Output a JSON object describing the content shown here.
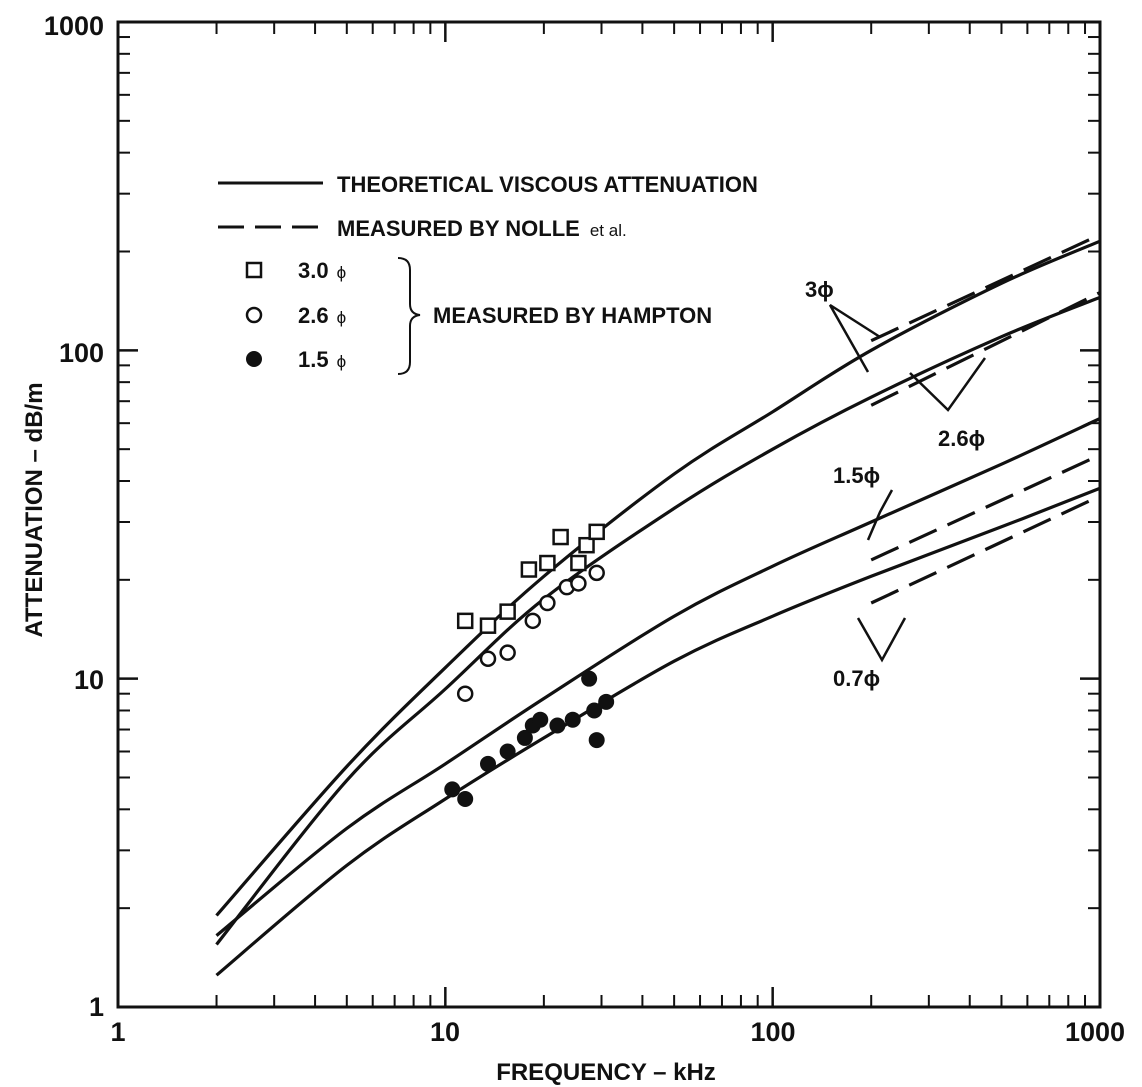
{
  "chart_data": {
    "type": "line",
    "xscale": "log",
    "yscale": "log",
    "xlim": [
      1,
      1000
    ],
    "ylim": [
      1,
      1000
    ],
    "xlabel": "FREQUENCY – kHz",
    "ylabel": "ATTENUATION – dB/m",
    "x_ticks": [
      "1",
      "10",
      "100",
      "1000"
    ],
    "y_ticks": [
      "1",
      "10",
      "100",
      "1000"
    ],
    "grid": false,
    "legend_position": "upper-left",
    "legend": {
      "solid": "THEORETICAL VISCOUS ATTENUATION",
      "dashed_main": "MEASURED BY NOLLE",
      "dashed_suffix": "et al.",
      "hampton_group": "MEASURED BY HAMPTON",
      "markers": [
        {
          "symbol": "open-square",
          "number": "3.0",
          "unit": "ϕ"
        },
        {
          "symbol": "open-circle",
          "number": "2.6",
          "unit": "ϕ"
        },
        {
          "symbol": "filled-circle",
          "number": "1.5",
          "unit": "ϕ"
        }
      ]
    },
    "series": [
      {
        "name": "3ϕ",
        "style": "solid",
        "x": [
          2,
          5,
          10,
          20,
          50,
          100,
          200,
          500,
          1000
        ],
        "y": [
          1.9,
          5.4,
          10.8,
          20.5,
          42,
          65,
          100,
          160,
          215
        ]
      },
      {
        "name": "2.6ϕ",
        "style": "solid",
        "x": [
          2,
          5,
          10,
          20,
          50,
          100,
          200,
          500,
          1000
        ],
        "y": [
          1.55,
          4.9,
          9.3,
          17.5,
          33,
          50,
          72,
          110,
          145
        ]
      },
      {
        "name": "1.5ϕ",
        "style": "solid",
        "x": [
          2,
          5,
          10,
          20,
          50,
          100,
          200,
          500,
          1000
        ],
        "y": [
          1.65,
          3.5,
          5.5,
          8.7,
          15.5,
          22,
          30,
          45,
          62
        ]
      },
      {
        "name": "0.7ϕ",
        "style": "solid",
        "x": [
          2,
          5,
          10,
          20,
          50,
          100,
          200,
          500,
          1000
        ],
        "y": [
          1.25,
          2.7,
          4.3,
          6.6,
          11.3,
          15.5,
          20.5,
          29,
          38
        ]
      },
      {
        "name": "3ϕ",
        "style": "dashed",
        "x": [
          200,
          1000
        ],
        "y": [
          107,
          225
        ]
      },
      {
        "name": "2.6ϕ",
        "style": "dashed",
        "x": [
          200,
          1000
        ],
        "y": [
          68,
          150
        ]
      },
      {
        "name": "1.5ϕ",
        "style": "dashed",
        "x": [
          200,
          1000
        ],
        "y": [
          23,
          48
        ]
      },
      {
        "name": "0.7ϕ",
        "style": "dashed",
        "x": [
          200,
          1000
        ],
        "y": [
          17,
          36
        ]
      }
    ],
    "points": [
      {
        "name": "3.0 ϕ",
        "marker": "open-square",
        "x": [
          11.5,
          13.5,
          15.5,
          18,
          20.5,
          22.5,
          25.5,
          27,
          29
        ],
        "y": [
          15,
          14.5,
          16,
          21.5,
          22.5,
          27,
          22.5,
          25.5,
          28
        ]
      },
      {
        "name": "2.6 ϕ",
        "marker": "open-circle",
        "x": [
          11.5,
          13.5,
          15.5,
          18.5,
          20.5,
          23.5,
          25.5,
          29
        ],
        "y": [
          9,
          11.5,
          12,
          15,
          17,
          19,
          19.5,
          21
        ]
      },
      {
        "name": "1.5 ϕ",
        "marker": "filled-circle",
        "x": [
          10.5,
          11.5,
          13.5,
          15.5,
          17.5,
          18.5,
          19.5,
          22,
          24.5,
          27.5,
          28.5,
          29,
          31
        ],
        "y": [
          4.6,
          4.3,
          5.5,
          6,
          6.6,
          7.2,
          7.5,
          7.2,
          7.5,
          10,
          8,
          6.5,
          8.5
        ]
      }
    ],
    "annotations": {
      "label_3": {
        "number": "3",
        "unit": "ϕ"
      },
      "label_26": {
        "number": "2.6",
        "unit": "ϕ"
      },
      "label_15": {
        "number": "1.5",
        "unit": "ϕ"
      },
      "label_07": {
        "number": "0.7",
        "unit": "ϕ"
      }
    }
  }
}
